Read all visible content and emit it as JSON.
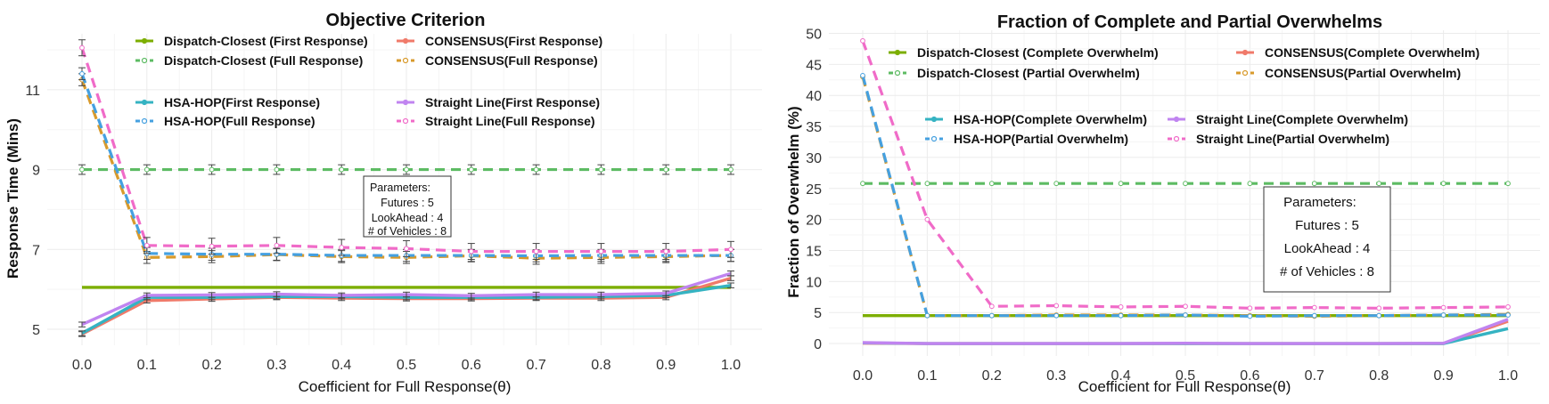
{
  "chart_data": [
    {
      "type": "line",
      "title": "Objective Criterion",
      "xlabel": "Coefficient for Full Response(θ)",
      "ylabel": "Response Time (Mins)",
      "x": [
        0.0,
        0.1,
        0.2,
        0.3,
        0.4,
        0.5,
        0.6,
        0.7,
        0.8,
        0.9,
        1.0
      ],
      "xticks": [
        "0.0",
        "0.1",
        "0.2",
        "0.3",
        "0.4",
        "0.5",
        "0.6",
        "0.7",
        "0.8",
        "0.9",
        "1.0"
      ],
      "yticks": [
        "5",
        "7",
        "9",
        "11"
      ],
      "ylim": [
        4.6,
        12.4
      ],
      "grid": true,
      "error_bars": true,
      "series": [
        {
          "name": "Dispatch-Closest (First Response)",
          "color": "#7cae00",
          "dash": "solid",
          "values": [
            6.05,
            6.05,
            6.05,
            6.05,
            6.05,
            6.05,
            6.05,
            6.05,
            6.05,
            6.05,
            6.05
          ],
          "err": 0
        },
        {
          "name": "Dispatch-Closest (Full Response)",
          "color": "#5dbb63",
          "dash": "dashed",
          "values": [
            9.0,
            9.0,
            9.0,
            9.0,
            9.0,
            9.0,
            9.0,
            9.0,
            9.0,
            9.0,
            9.0
          ],
          "err": 0.12
        },
        {
          "name": "CONSENSUS(First Response)",
          "color": "#f07a6a",
          "dash": "solid",
          "values": [
            4.88,
            5.72,
            5.76,
            5.8,
            5.78,
            5.77,
            5.77,
            5.78,
            5.78,
            5.8,
            6.28
          ],
          "err": 0.06
        },
        {
          "name": "CONSENSUS(Full Response)",
          "color": "#d89a2b",
          "dash": "dashed",
          "values": [
            11.25,
            6.8,
            6.82,
            6.87,
            6.82,
            6.8,
            6.84,
            6.78,
            6.8,
            6.82,
            6.85
          ],
          "err": 0.15
        },
        {
          "name": "HSA-HOP(First Response)",
          "color": "#35b3c2",
          "dash": "solid",
          "values": [
            4.9,
            5.8,
            5.8,
            5.82,
            5.82,
            5.8,
            5.8,
            5.8,
            5.82,
            5.85,
            6.1
          ],
          "err": 0.06
        },
        {
          "name": "HSA-HOP(Full Response)",
          "color": "#45a0e0",
          "dash": "dashed",
          "values": [
            11.4,
            6.9,
            6.88,
            6.88,
            6.85,
            6.85,
            6.85,
            6.84,
            6.85,
            6.85,
            6.85
          ],
          "err": 0.15
        },
        {
          "name": "Straight Line(First Response)",
          "color": "#c084f0",
          "dash": "solid",
          "values": [
            5.12,
            5.85,
            5.86,
            5.88,
            5.85,
            5.87,
            5.84,
            5.87,
            5.87,
            5.9,
            6.4
          ],
          "err": 0.06
        },
        {
          "name": "Straight Line(Full Response)",
          "color": "#f06bc8",
          "dash": "dashed",
          "values": [
            12.05,
            7.1,
            7.08,
            7.1,
            7.05,
            7.02,
            6.95,
            6.95,
            6.95,
            6.95,
            7.0
          ],
          "err": 0.2
        }
      ],
      "legend": [
        [
          "Dispatch-Closest (First Response)",
          "CONSENSUS(First Response)"
        ],
        [
          "Dispatch-Closest (Full Response)",
          "CONSENSUS(Full Response)"
        ],
        [
          "HSA-HOP(First Response)",
          "Straight Line(First Response)"
        ],
        [
          "HSA-HOP(Full Response)",
          "Straight Line(Full Response)"
        ]
      ],
      "annotation": [
        "Parameters:",
        "Futures : 5",
        "LookAhead : 4",
        "# of Vehicles : 8"
      ]
    },
    {
      "type": "line",
      "title": "Fraction of Complete and Partial Overwhelms",
      "xlabel": "Coefficient for Full Response(θ)",
      "ylabel": "Fraction of Overwhelm (%)",
      "x": [
        0.0,
        0.1,
        0.2,
        0.3,
        0.4,
        0.5,
        0.6,
        0.7,
        0.8,
        0.9,
        1.0
      ],
      "xticks": [
        "0.0",
        "0.1",
        "0.2",
        "0.3",
        "0.4",
        "0.5",
        "0.6",
        "0.7",
        "0.8",
        "0.9",
        "1.0"
      ],
      "yticks": [
        "0",
        "5",
        "10",
        "15",
        "20",
        "25",
        "30",
        "35",
        "40",
        "45",
        "50"
      ],
      "ylim": [
        -2,
        50.5
      ],
      "grid": true,
      "error_bars": false,
      "series": [
        {
          "name": "Dispatch-Closest (Complete Overwhelm)",
          "color": "#7cae00",
          "dash": "solid",
          "values": [
            4.5,
            4.5,
            4.5,
            4.5,
            4.5,
            4.5,
            4.5,
            4.5,
            4.5,
            4.5,
            4.5
          ]
        },
        {
          "name": "Dispatch-Closest (Partial Overwhelm)",
          "color": "#5dbb63",
          "dash": "dashed",
          "values": [
            25.8,
            25.8,
            25.8,
            25.8,
            25.8,
            25.8,
            25.8,
            25.8,
            25.8,
            25.8,
            25.8
          ]
        },
        {
          "name": "CONSENSUS(Complete Overwhelm)",
          "color": "#f07a6a",
          "dash": "solid",
          "values": [
            0.05,
            0.0,
            0.0,
            0.0,
            0.0,
            0.0,
            0.0,
            0.0,
            0.0,
            0.0,
            3.6
          ]
        },
        {
          "name": "CONSENSUS(Partial Overwhelm)",
          "color": "#d89a2b",
          "dash": "dashed",
          "values": [
            43.0,
            4.5,
            4.5,
            4.6,
            4.6,
            4.6,
            4.5,
            4.4,
            4.5,
            4.6,
            4.7
          ]
        },
        {
          "name": "HSA-HOP(Complete Overwhelm)",
          "color": "#35b3c2",
          "dash": "solid",
          "values": [
            0.1,
            0.0,
            0.0,
            0.0,
            0.0,
            0.0,
            0.0,
            0.0,
            0.0,
            0.0,
            2.4
          ]
        },
        {
          "name": "HSA-HOP(Partial Overwhelm)",
          "color": "#45a0e0",
          "dash": "dashed",
          "values": [
            43.2,
            4.5,
            4.5,
            4.5,
            4.5,
            4.6,
            4.4,
            4.5,
            4.5,
            4.6,
            4.6
          ]
        },
        {
          "name": "Straight Line(Complete Overwhelm)",
          "color": "#c084f0",
          "dash": "solid",
          "values": [
            0.15,
            0.0,
            0.0,
            0.0,
            0.0,
            0.05,
            0.0,
            0.0,
            0.0,
            0.05,
            3.9
          ]
        },
        {
          "name": "Straight Line(Partial Overwhelm)",
          "color": "#f06bc8",
          "dash": "dashed",
          "values": [
            48.8,
            20.0,
            6.0,
            6.1,
            5.9,
            6.0,
            5.7,
            5.8,
            5.7,
            5.8,
            5.9
          ]
        }
      ],
      "legend": [
        [
          "Dispatch-Closest (Complete Overwhelm)",
          "CONSENSUS(Complete Overwhelm)"
        ],
        [
          "Dispatch-Closest (Partial Overwhelm)",
          "CONSENSUS(Partial Overwhelm)"
        ],
        [
          "HSA-HOP(Complete Overwhelm)",
          "Straight Line(Complete Overwhelm)"
        ],
        [
          "HSA-HOP(Partial Overwhelm)",
          "Straight Line(Partial Overwhelm)"
        ]
      ],
      "annotation": [
        "Parameters:",
        "Futures : 5",
        "LookAhead : 4",
        "# of Vehicles : 8"
      ]
    }
  ]
}
